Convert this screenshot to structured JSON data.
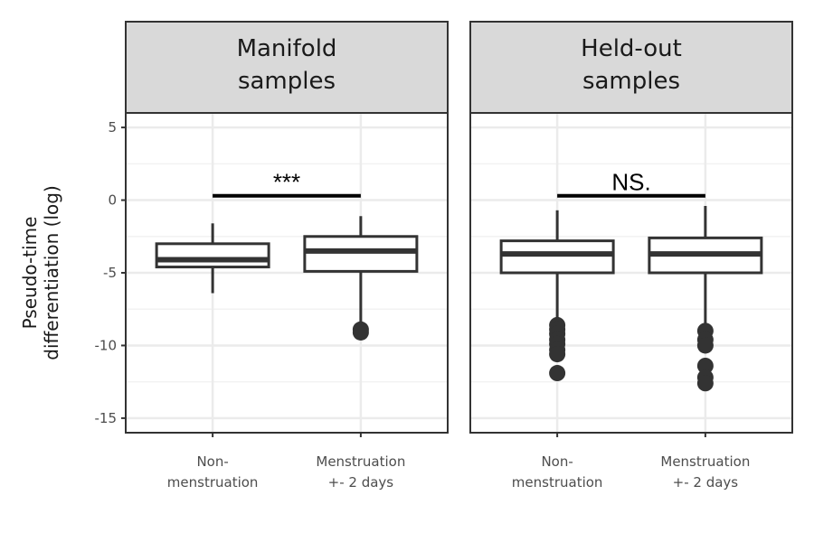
{
  "chart_data": {
    "type": "box",
    "ylabel": [
      "Pseudo-time",
      "differentiation (log)"
    ],
    "ylim": [
      -16,
      6
    ],
    "y_ticks": [
      5,
      0,
      -5,
      -10,
      -15
    ],
    "y_tick_labels": [
      "5",
      "0",
      "-5",
      "-10",
      "-15"
    ],
    "categories": [
      [
        "Non-",
        "menstruation"
      ],
      [
        "Menstruation",
        "+- 2 days"
      ]
    ],
    "colors": {
      "panel_border": "#333333",
      "strip_fill": "#d9d9d9",
      "grid": "#ebebeb",
      "box_stroke": "#333333",
      "sig_bar": "#000000"
    },
    "grid": true,
    "panels": [
      {
        "title": [
          "Manifold",
          "samples"
        ],
        "significance": {
          "label": "***",
          "y": 0.3
        },
        "boxes": [
          {
            "category": "Non-menstruation",
            "whisker_low": -6.4,
            "q1": -4.6,
            "median": -4.1,
            "q3": -3.0,
            "whisker_high": -1.6,
            "outliers": []
          },
          {
            "category": "Menstruation +- 2 days",
            "whisker_low": -8.8,
            "q1": -4.9,
            "median": -3.5,
            "q3": -2.5,
            "whisker_high": -1.1,
            "outliers": [
              -8.9,
              -9.1
            ]
          }
        ]
      },
      {
        "title": [
          "Held-out",
          "samples"
        ],
        "significance": {
          "label": "NS.",
          "y": 0.3
        },
        "boxes": [
          {
            "category": "Non-menstruation",
            "whisker_low": -8.5,
            "q1": -5.0,
            "median": -3.7,
            "q3": -2.8,
            "whisker_high": -0.7,
            "outliers": [
              -8.6,
              -8.9,
              -9.2,
              -9.6,
              -9.9,
              -10.3,
              -10.6,
              -11.9
            ]
          },
          {
            "category": "Menstruation +- 2 days",
            "whisker_low": -8.9,
            "q1": -5.0,
            "median": -3.7,
            "q3": -2.6,
            "whisker_high": -0.4,
            "outliers": [
              -9.0,
              -9.6,
              -10.0,
              -11.4,
              -12.2,
              -12.6
            ]
          }
        ]
      }
    ]
  }
}
